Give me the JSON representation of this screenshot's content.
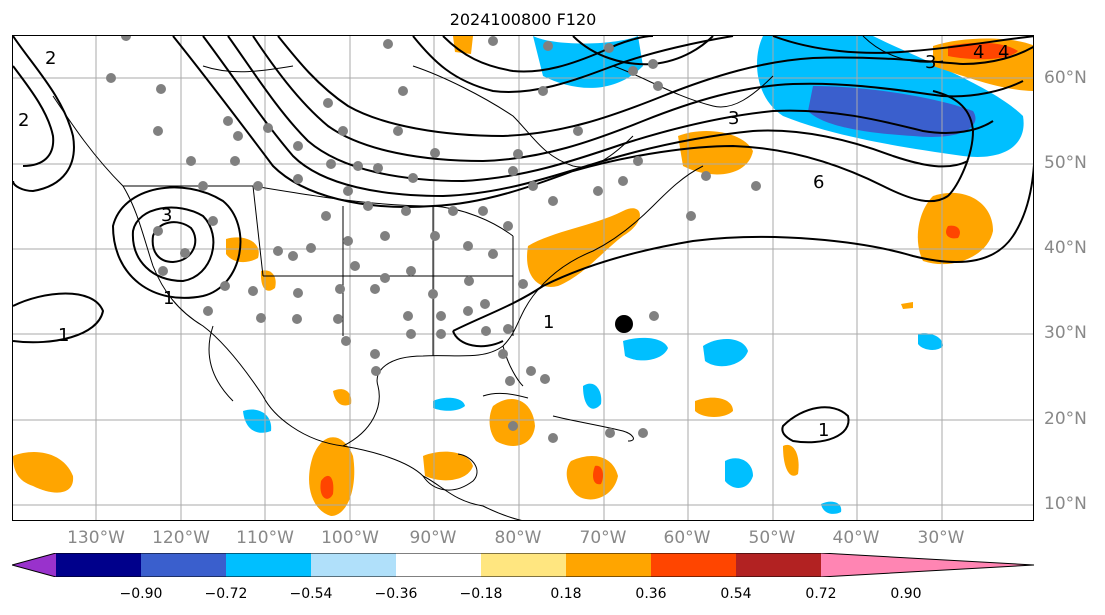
{
  "title": "2024100800 F120",
  "lon_labels": [
    "130°W",
    "120°W",
    "110°W",
    "100°W",
    "90°W",
    "80°W",
    "70°W",
    "60°W",
    "50°W",
    "40°W",
    "30°W"
  ],
  "lat_labels": [
    "60°N",
    "50°N",
    "40°N",
    "30°N",
    "20°N",
    "10°N"
  ],
  "contour_labels": [
    "2",
    "2",
    "1",
    "3",
    "6",
    "3",
    "4",
    "1",
    "1",
    "3",
    "4",
    "1"
  ],
  "colorbar": {
    "ticks": [
      "−0.90",
      "−0.72",
      "−0.54",
      "−0.36",
      "−0.18",
      "0.18",
      "0.36",
      "0.54",
      "0.72",
      "0.90"
    ],
    "colors": [
      "#9932cc",
      "#00008b",
      "#3a5fcd",
      "#00bfff",
      "#b0e0fa",
      "#ffffff",
      "#ffe680",
      "#ffa500",
      "#ff4500",
      "#b22222",
      "#ff85b3"
    ]
  }
}
